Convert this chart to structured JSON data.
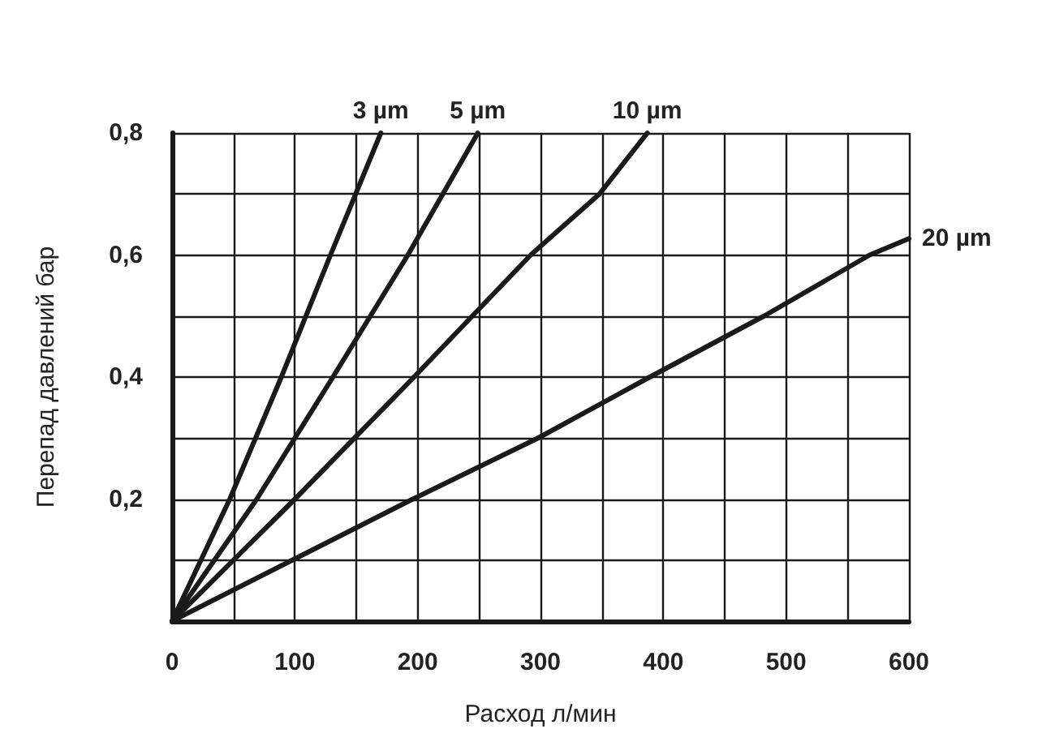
{
  "chart_data": {
    "type": "line",
    "xlabel": "Расход л/мин",
    "ylabel": "Перепад давлений бар",
    "xlim": [
      0,
      600
    ],
    "ylim": [
      0,
      0.8
    ],
    "xticks": [
      0,
      {
        "value": 50,
        "label": null
      },
      100,
      {
        "value": 150,
        "label": null
      },
      200,
      {
        "value": 250,
        "label": null
      },
      300,
      {
        "value": 350,
        "label": null
      },
      400,
      {
        "value": 450,
        "label": null
      },
      500,
      {
        "value": 550,
        "label": null
      },
      600
    ],
    "yticks": [
      {
        "value": 0,
        "label": null
      },
      {
        "value": 0.1,
        "label": null
      },
      {
        "value": 0.2,
        "label": "0,2"
      },
      {
        "value": 0.3,
        "label": null
      },
      {
        "value": 0.4,
        "label": "0,4"
      },
      {
        "value": 0.5,
        "label": null
      },
      {
        "value": 0.6,
        "label": "0,6"
      },
      {
        "value": 0.7,
        "label": null
      },
      {
        "value": 0.8,
        "label": "0,8"
      }
    ],
    "grid": true,
    "legend": false,
    "marker": "none",
    "line_style": "solid",
    "series": [
      {
        "name": "3 µm",
        "color": "#1a1a1a",
        "x": [
          0,
          47,
          89,
          129,
          170
        ],
        "values": [
          0,
          0.2,
          0.4,
          0.6,
          0.8
        ]
      },
      {
        "name": "5 µm",
        "color": "#1a1a1a",
        "x": [
          0,
          69,
          131,
          192,
          249
        ],
        "values": [
          0,
          0.2,
          0.4,
          0.6,
          0.8
        ]
      },
      {
        "name": "10 µm",
        "color": "#1a1a1a",
        "x": [
          0,
          100,
          197,
          292,
          348,
          387
        ],
        "values": [
          0,
          0.2,
          0.4,
          0.6,
          0.7,
          0.8
        ]
      },
      {
        "name": "20 µm",
        "color": "#1a1a1a",
        "x": [
          0,
          196,
          298,
          389,
          482,
          568,
          600
        ],
        "values": [
          0,
          0.2,
          0.3,
          0.4,
          0.5,
          0.6,
          0.627
        ]
      }
    ]
  }
}
